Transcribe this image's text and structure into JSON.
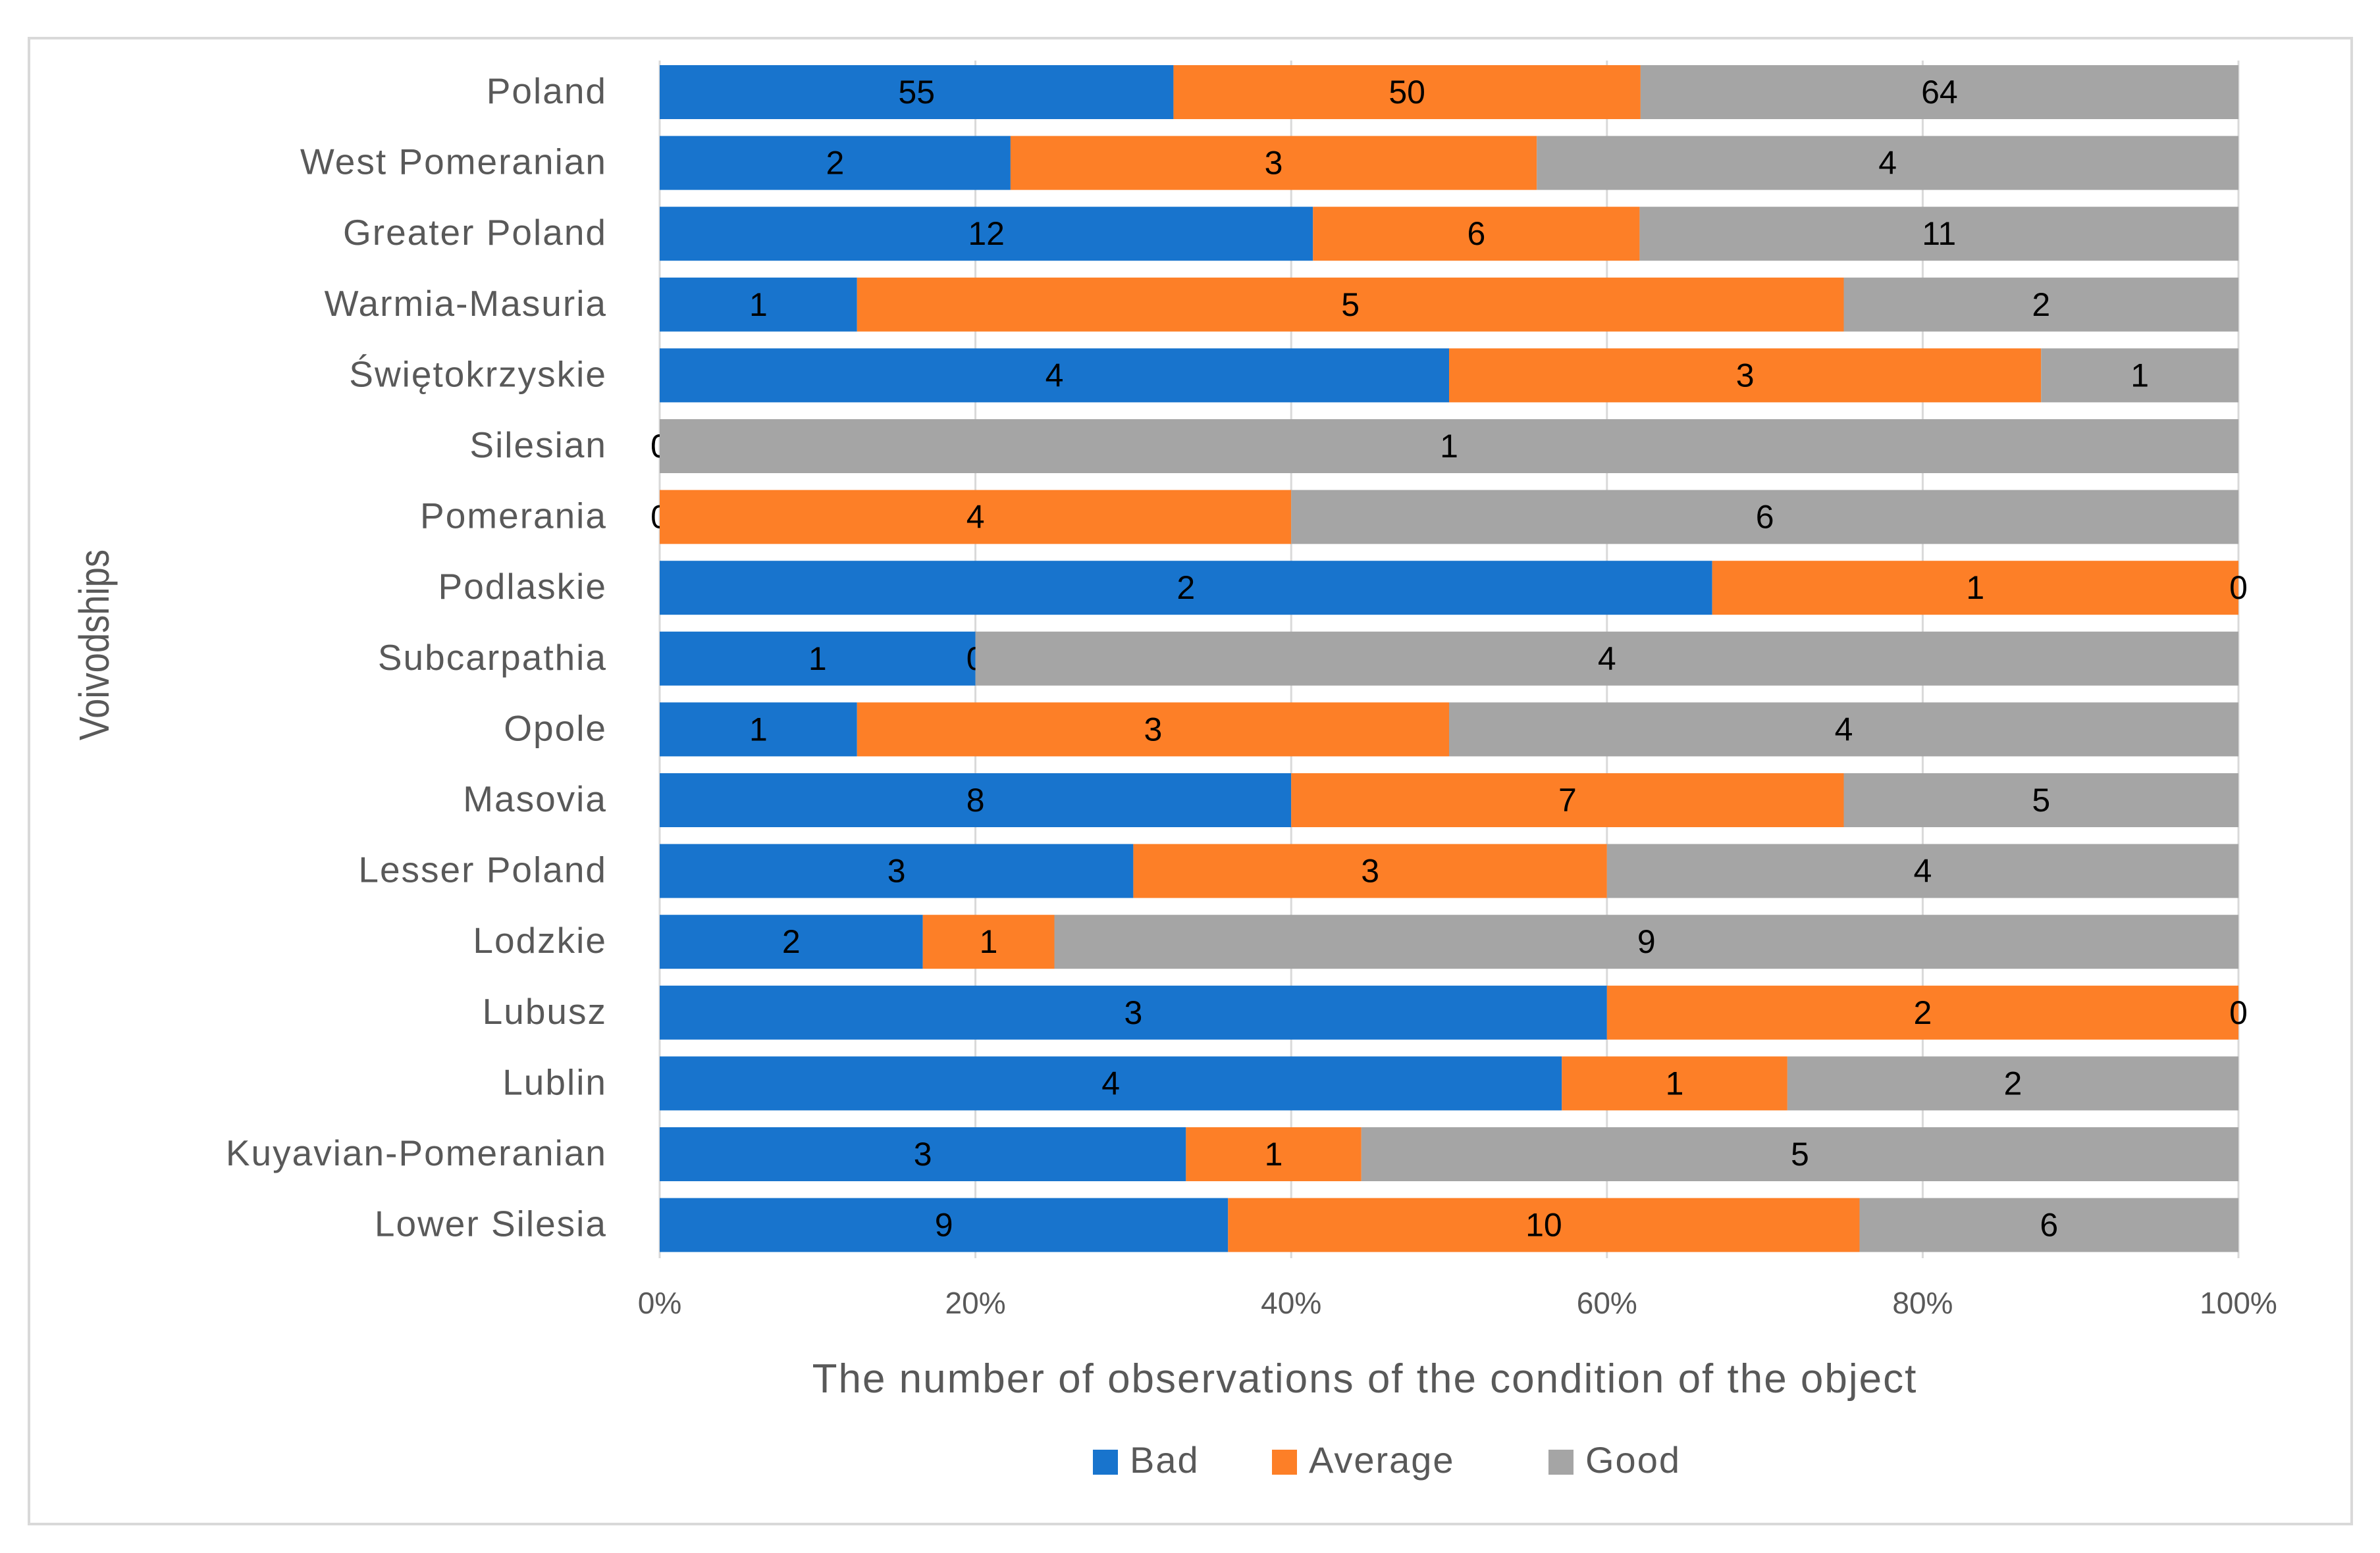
{
  "colors": {
    "Bad": "#1874cd",
    "Average": "#fd7f27",
    "Good": "#a5a5a5",
    "gridline": "#d9d9d9",
    "text": "#595959"
  },
  "chart_data": {
    "type": "bar",
    "orientation": "horizontal",
    "stacked": "percent",
    "title": "",
    "xlabel": "The number of observations of the condition of the object",
    "ylabel": "Voivodships",
    "xlim": [
      0,
      100
    ],
    "xticks": [
      "0%",
      "20%",
      "40%",
      "60%",
      "80%",
      "100%"
    ],
    "grid": true,
    "legend": "bottom",
    "categories": [
      "Poland",
      "West Pomeranian",
      "Greater Poland",
      "Warmia-Masuria",
      "Świętokrzyskie",
      "Silesian",
      "Pomerania",
      "Podlaskie",
      "Subcarpathia",
      "Opole",
      "Masovia",
      "Lesser Poland",
      "Lodzkie",
      "Lubusz",
      "Lublin",
      "Kuyavian-Pomeranian",
      "Lower Silesia"
    ],
    "series": [
      {
        "name": "Bad",
        "values": [
          55,
          2,
          12,
          1,
          4,
          0,
          0,
          2,
          1,
          1,
          8,
          3,
          2,
          3,
          4,
          3,
          9
        ]
      },
      {
        "name": "Average",
        "values": [
          50,
          3,
          6,
          5,
          3,
          0,
          4,
          1,
          0,
          3,
          7,
          3,
          1,
          2,
          1,
          1,
          10
        ]
      },
      {
        "name": "Good",
        "values": [
          64,
          4,
          11,
          2,
          1,
          1,
          6,
          0,
          4,
          4,
          5,
          4,
          9,
          0,
          2,
          5,
          6
        ]
      }
    ]
  }
}
